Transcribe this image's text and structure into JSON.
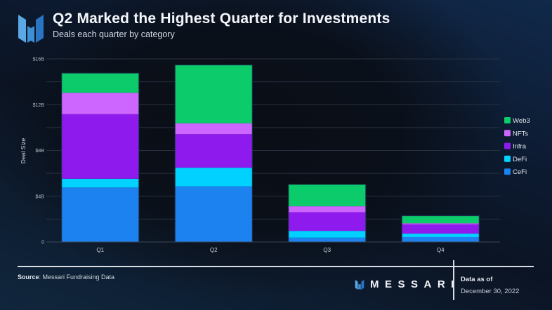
{
  "header": {
    "title": "Q2 Marked the Highest Quarter for Investments",
    "subtitle": "Deals each quarter by category",
    "logo_icon": "messari-logo-icon"
  },
  "colors": {
    "CeFi": "#1c82f0",
    "DeFi": "#00d1ff",
    "Infra": "#8f1aed",
    "NFTs": "#cc66ff",
    "Web3": "#0bcb6b"
  },
  "chart_data": {
    "type": "bar",
    "stacked": true,
    "title": "Q2 Marked the Highest Quarter for Investments",
    "subtitle": "Deals each quarter by category",
    "xlabel": "",
    "ylabel": "Deal Size",
    "categories": [
      "Q1",
      "Q2",
      "Q3",
      "Q4"
    ],
    "ylim": [
      0,
      16
    ],
    "yunit": "$B",
    "yticks": [
      0,
      4,
      8,
      12,
      16
    ],
    "ytick_labels": [
      "0",
      "$4B",
      "$8B",
      "$12B",
      "$16B"
    ],
    "grid": true,
    "grid_step": 2,
    "legend_position": "right",
    "series": [
      {
        "name": "CeFi",
        "values": [
          4.76,
          4.86,
          0.38,
          0.43
        ]
      },
      {
        "name": "DeFi",
        "values": [
          0.77,
          1.63,
          0.59,
          0.3
        ]
      },
      {
        "name": "Infra",
        "values": [
          5.64,
          2.94,
          1.63,
          0.81
        ]
      },
      {
        "name": "NFTs",
        "values": [
          1.87,
          0.94,
          0.52,
          0.1
        ]
      },
      {
        "name": "Web3",
        "values": [
          1.72,
          5.1,
          1.91,
          0.65
        ]
      }
    ],
    "legend_order": [
      "Web3",
      "NFTs",
      "Infra",
      "DeFi",
      "CeFi"
    ]
  },
  "footer": {
    "source_label": "Source",
    "source_text": ": Messari Fundraising Data",
    "brand": "MESSARI",
    "data_as_of_label": "Data as of",
    "data_as_of_date": "December 30, 2022"
  }
}
